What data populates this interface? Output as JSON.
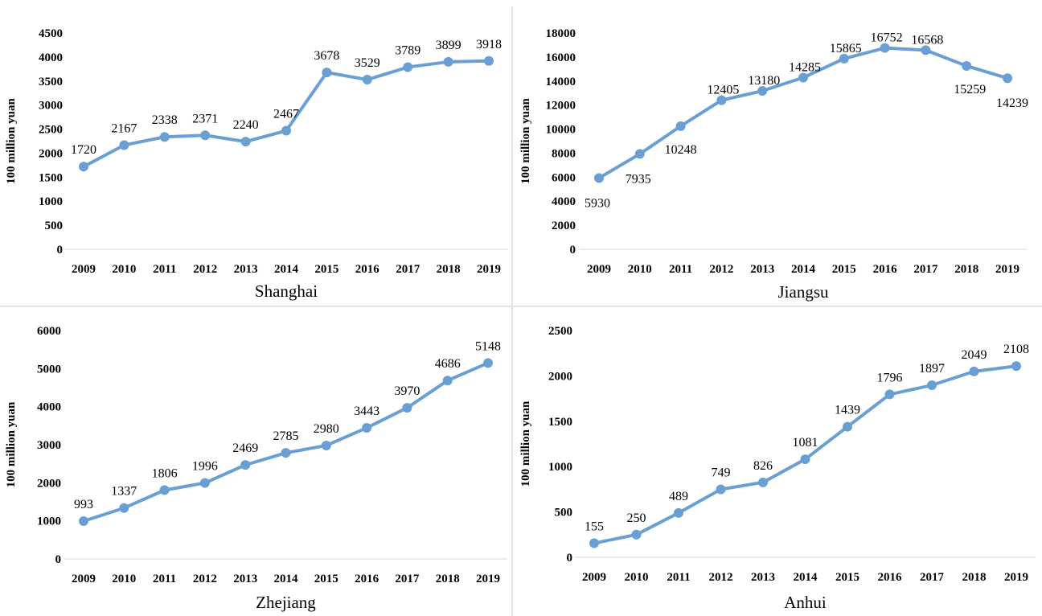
{
  "colors": {
    "series": "#6a9fd4",
    "axis": "#d9d9d9",
    "divider": "#e3e3e3"
  },
  "chart_data": [
    {
      "type": "line",
      "title": "Shanghai",
      "ylabel": "100 million yuan",
      "xlabel": "",
      "categories": [
        "2009",
        "2010",
        "2011",
        "2012",
        "2013",
        "2014",
        "2015",
        "2016",
        "2017",
        "2018",
        "2019"
      ],
      "values": [
        1720,
        2167,
        2338,
        2371,
        2240,
        2467,
        3678,
        3529,
        3789,
        3899,
        3918
      ],
      "ylim": [
        0,
        4500
      ],
      "yticks": [
        0,
        500,
        1000,
        1500,
        2000,
        2500,
        3000,
        3500,
        4000,
        4500
      ],
      "grid": false
    },
    {
      "type": "line",
      "title": "Jiangsu",
      "ylabel": "100 million yuan",
      "xlabel": "",
      "categories": [
        "2009",
        "2010",
        "2011",
        "2012",
        "2013",
        "2014",
        "2015",
        "2016",
        "2017",
        "2018",
        "2019"
      ],
      "values": [
        5930,
        7935,
        10248,
        12405,
        13180,
        14285,
        15865,
        16752,
        16568,
        15259,
        14239
      ],
      "ylim": [
        0,
        18000
      ],
      "yticks": [
        0,
        2000,
        4000,
        6000,
        8000,
        10000,
        12000,
        14000,
        16000,
        18000
      ],
      "grid": false
    },
    {
      "type": "line",
      "title": "Zhejiang",
      "ylabel": "100 million yuan",
      "xlabel": "",
      "categories": [
        "2009",
        "2010",
        "2011",
        "2012",
        "2013",
        "2014",
        "2015",
        "2016",
        "2017",
        "2018",
        "2019"
      ],
      "values": [
        993,
        1337,
        1806,
        1996,
        2469,
        2785,
        2980,
        3443,
        3970,
        4686,
        5148
      ],
      "ylim": [
        0,
        6000
      ],
      "yticks": [
        0,
        1000,
        2000,
        3000,
        4000,
        5000,
        6000
      ],
      "grid": false
    },
    {
      "type": "line",
      "title": "Anhui",
      "ylabel": "100 million yuan",
      "xlabel": "",
      "categories": [
        "2009",
        "2010",
        "2011",
        "2012",
        "2013",
        "2014",
        "2015",
        "2016",
        "2017",
        "2018",
        "2019"
      ],
      "values": [
        155,
        250,
        489,
        749,
        826,
        1081,
        1439,
        1796,
        1897,
        2049,
        2108
      ],
      "ylim": [
        0,
        2500
      ],
      "yticks": [
        0,
        500,
        1000,
        1500,
        2000,
        2500
      ],
      "grid": false
    }
  ]
}
